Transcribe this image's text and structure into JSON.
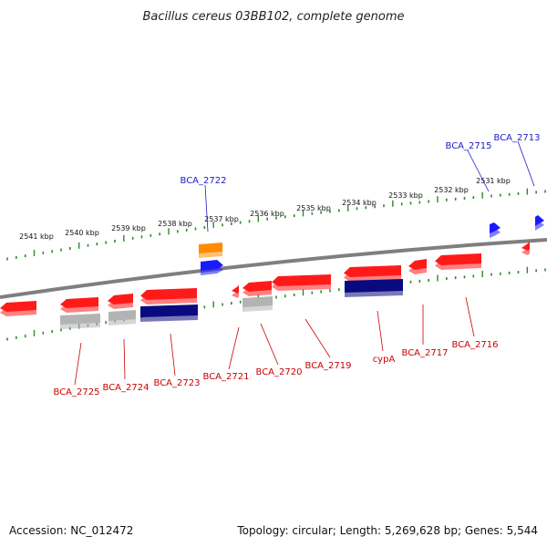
{
  "title": "Bacillus cereus 03BB102, complete genome",
  "accession": "Accession: NC_012472",
  "topology": "Topology: circular; Length: 5,269,628 bp; Genes: 5,544",
  "ruler": {
    "unit": "kbp",
    "labels": [
      "2541 kbp",
      "2540 kbp",
      "2539 kbp",
      "2538 kbp",
      "2537 kbp",
      "2536 kbp",
      "2535 kbp",
      "2534 kbp",
      "2533 kbp",
      "2532 kbp",
      "2531 kbp"
    ]
  },
  "colors": {
    "backbone": "#7f7f7f",
    "tick": "#2a8a2a",
    "cds": "#ff1a1a",
    "rna": "#b3b3b3",
    "feature_navy": "#0a0a80",
    "feature_orange": "#ff8c00",
    "feature_blue": "#1a1aff",
    "label_forward": "#1a1acc",
    "label_reverse": "#cc0000"
  },
  "labels_forward": [
    "BCA_2722",
    "BCA_2715",
    "BCA_2713"
  ],
  "labels_reverse": [
    "BCA_2725",
    "BCA_2724",
    "BCA_2723",
    "BCA_2721",
    "BCA_2720",
    "BCA_2719",
    "cypA",
    "BCA_2717",
    "BCA_2716"
  ]
}
